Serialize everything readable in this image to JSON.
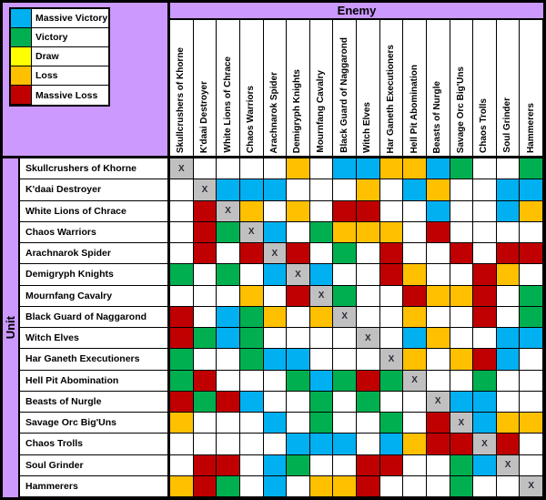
{
  "header": {
    "enemy_label": "Enemy",
    "unit_label": "Unit"
  },
  "legend": {
    "items": [
      {
        "code": "MV",
        "label": "Massive Victory",
        "color": "#00B0F0"
      },
      {
        "code": "V",
        "label": "Victory",
        "color": "#00B050"
      },
      {
        "code": "D",
        "label": "Draw",
        "color": "#FFFF00"
      },
      {
        "code": "L",
        "label": "Loss",
        "color": "#FFC000"
      },
      {
        "code": "ML",
        "label": "Massive Loss",
        "color": "#C00000"
      }
    ]
  },
  "colors": {
    "background": "#CC99FF",
    "border": "#000000",
    "empty_cell": "#FFFFFF",
    "diagonal_cell": "#C0C0C0"
  },
  "chart_data": {
    "type": "heatmap",
    "title": "Enemy",
    "xlabel": "Enemy",
    "ylabel": "Unit",
    "legend_position": "top-left",
    "value_codes": {
      "MV": "Massive Victory",
      "V": "Victory",
      "D": "Draw",
      "L": "Loss",
      "ML": "Massive Loss",
      "X": "same unit",
      "": "no data"
    },
    "diagonal_marker": "X",
    "categories": [
      "Skullcrushers of Khorne",
      "K'daai Destroyer",
      "White Lions of Chrace",
      "Chaos Warriors",
      "Arachnarok Spider",
      "Demigryph Knights",
      "Mournfang Cavalry",
      "Black Guard of Naggarond",
      "Witch Elves",
      "Har Ganeth Executioners",
      "Hell Pit Abomination",
      "Beasts of Nurgle",
      "Savage Orc Big'Uns",
      "Chaos Trolls",
      "Soul Grinder",
      "Hammerers"
    ],
    "values": [
      [
        "X",
        "",
        "",
        "",
        "",
        "L",
        "",
        "MV",
        "MV",
        "L",
        "L",
        "MV",
        "V",
        "",
        "",
        "V"
      ],
      [
        "",
        "X",
        "MV",
        "MV",
        "MV",
        "",
        "",
        "",
        "L",
        "",
        "MV",
        "L",
        "",
        "",
        "MV",
        "MV"
      ],
      [
        "",
        "ML",
        "X",
        "L",
        "",
        "L",
        "",
        "ML",
        "ML",
        "",
        "",
        "MV",
        "",
        "",
        "MV",
        "L"
      ],
      [
        "",
        "ML",
        "V",
        "X",
        "MV",
        "",
        "V",
        "L",
        "L",
        "L",
        "",
        "ML",
        "",
        "",
        "",
        ""
      ],
      [
        "",
        "ML",
        "",
        "ML",
        "X",
        "ML",
        "",
        "V",
        "",
        "ML",
        "",
        "",
        "ML",
        "",
        "ML",
        "ML"
      ],
      [
        "V",
        "",
        "V",
        "",
        "MV",
        "X",
        "MV",
        "",
        "",
        "ML",
        "L",
        "",
        "",
        "ML",
        "L",
        ""
      ],
      [
        "",
        "",
        "",
        "L",
        "",
        "ML",
        "X",
        "V",
        "",
        "",
        "ML",
        "L",
        "L",
        "ML",
        "",
        "V"
      ],
      [
        "ML",
        "",
        "MV",
        "V",
        "L",
        "",
        "L",
        "X",
        "",
        "",
        "L",
        "",
        "",
        "ML",
        "",
        "V"
      ],
      [
        "ML",
        "V",
        "MV",
        "V",
        "",
        "",
        "",
        "",
        "X",
        "",
        "MV",
        "L",
        "",
        "",
        "MV",
        "MV"
      ],
      [
        "V",
        "",
        "",
        "V",
        "MV",
        "MV",
        "",
        "",
        "",
        "X",
        "L",
        "",
        "L",
        "ML",
        "MV",
        ""
      ],
      [
        "V",
        "ML",
        "",
        "",
        "",
        "V",
        "MV",
        "V",
        "ML",
        "V",
        "X",
        "",
        "",
        "V",
        "",
        ""
      ],
      [
        "ML",
        "V",
        "ML",
        "MV",
        "",
        "",
        "V",
        "",
        "V",
        "",
        "",
        "X",
        "MV",
        "MV",
        "",
        ""
      ],
      [
        "L",
        "",
        "",
        "",
        "MV",
        "",
        "V",
        "",
        "",
        "V",
        "",
        "ML",
        "X",
        "MV",
        "L",
        "L"
      ],
      [
        "",
        "",
        "",
        "",
        "",
        "MV",
        "MV",
        "MV",
        "",
        "MV",
        "L",
        "ML",
        "ML",
        "X",
        "ML",
        ""
      ],
      [
        "",
        "ML",
        "ML",
        "",
        "MV",
        "V",
        "",
        "",
        "ML",
        "ML",
        "",
        "",
        "V",
        "MV",
        "X",
        ""
      ],
      [
        "L",
        "ML",
        "V",
        "",
        "MV",
        "",
        "L",
        "L",
        "ML",
        "",
        "",
        "",
        "V",
        "",
        "",
        "X"
      ]
    ]
  }
}
